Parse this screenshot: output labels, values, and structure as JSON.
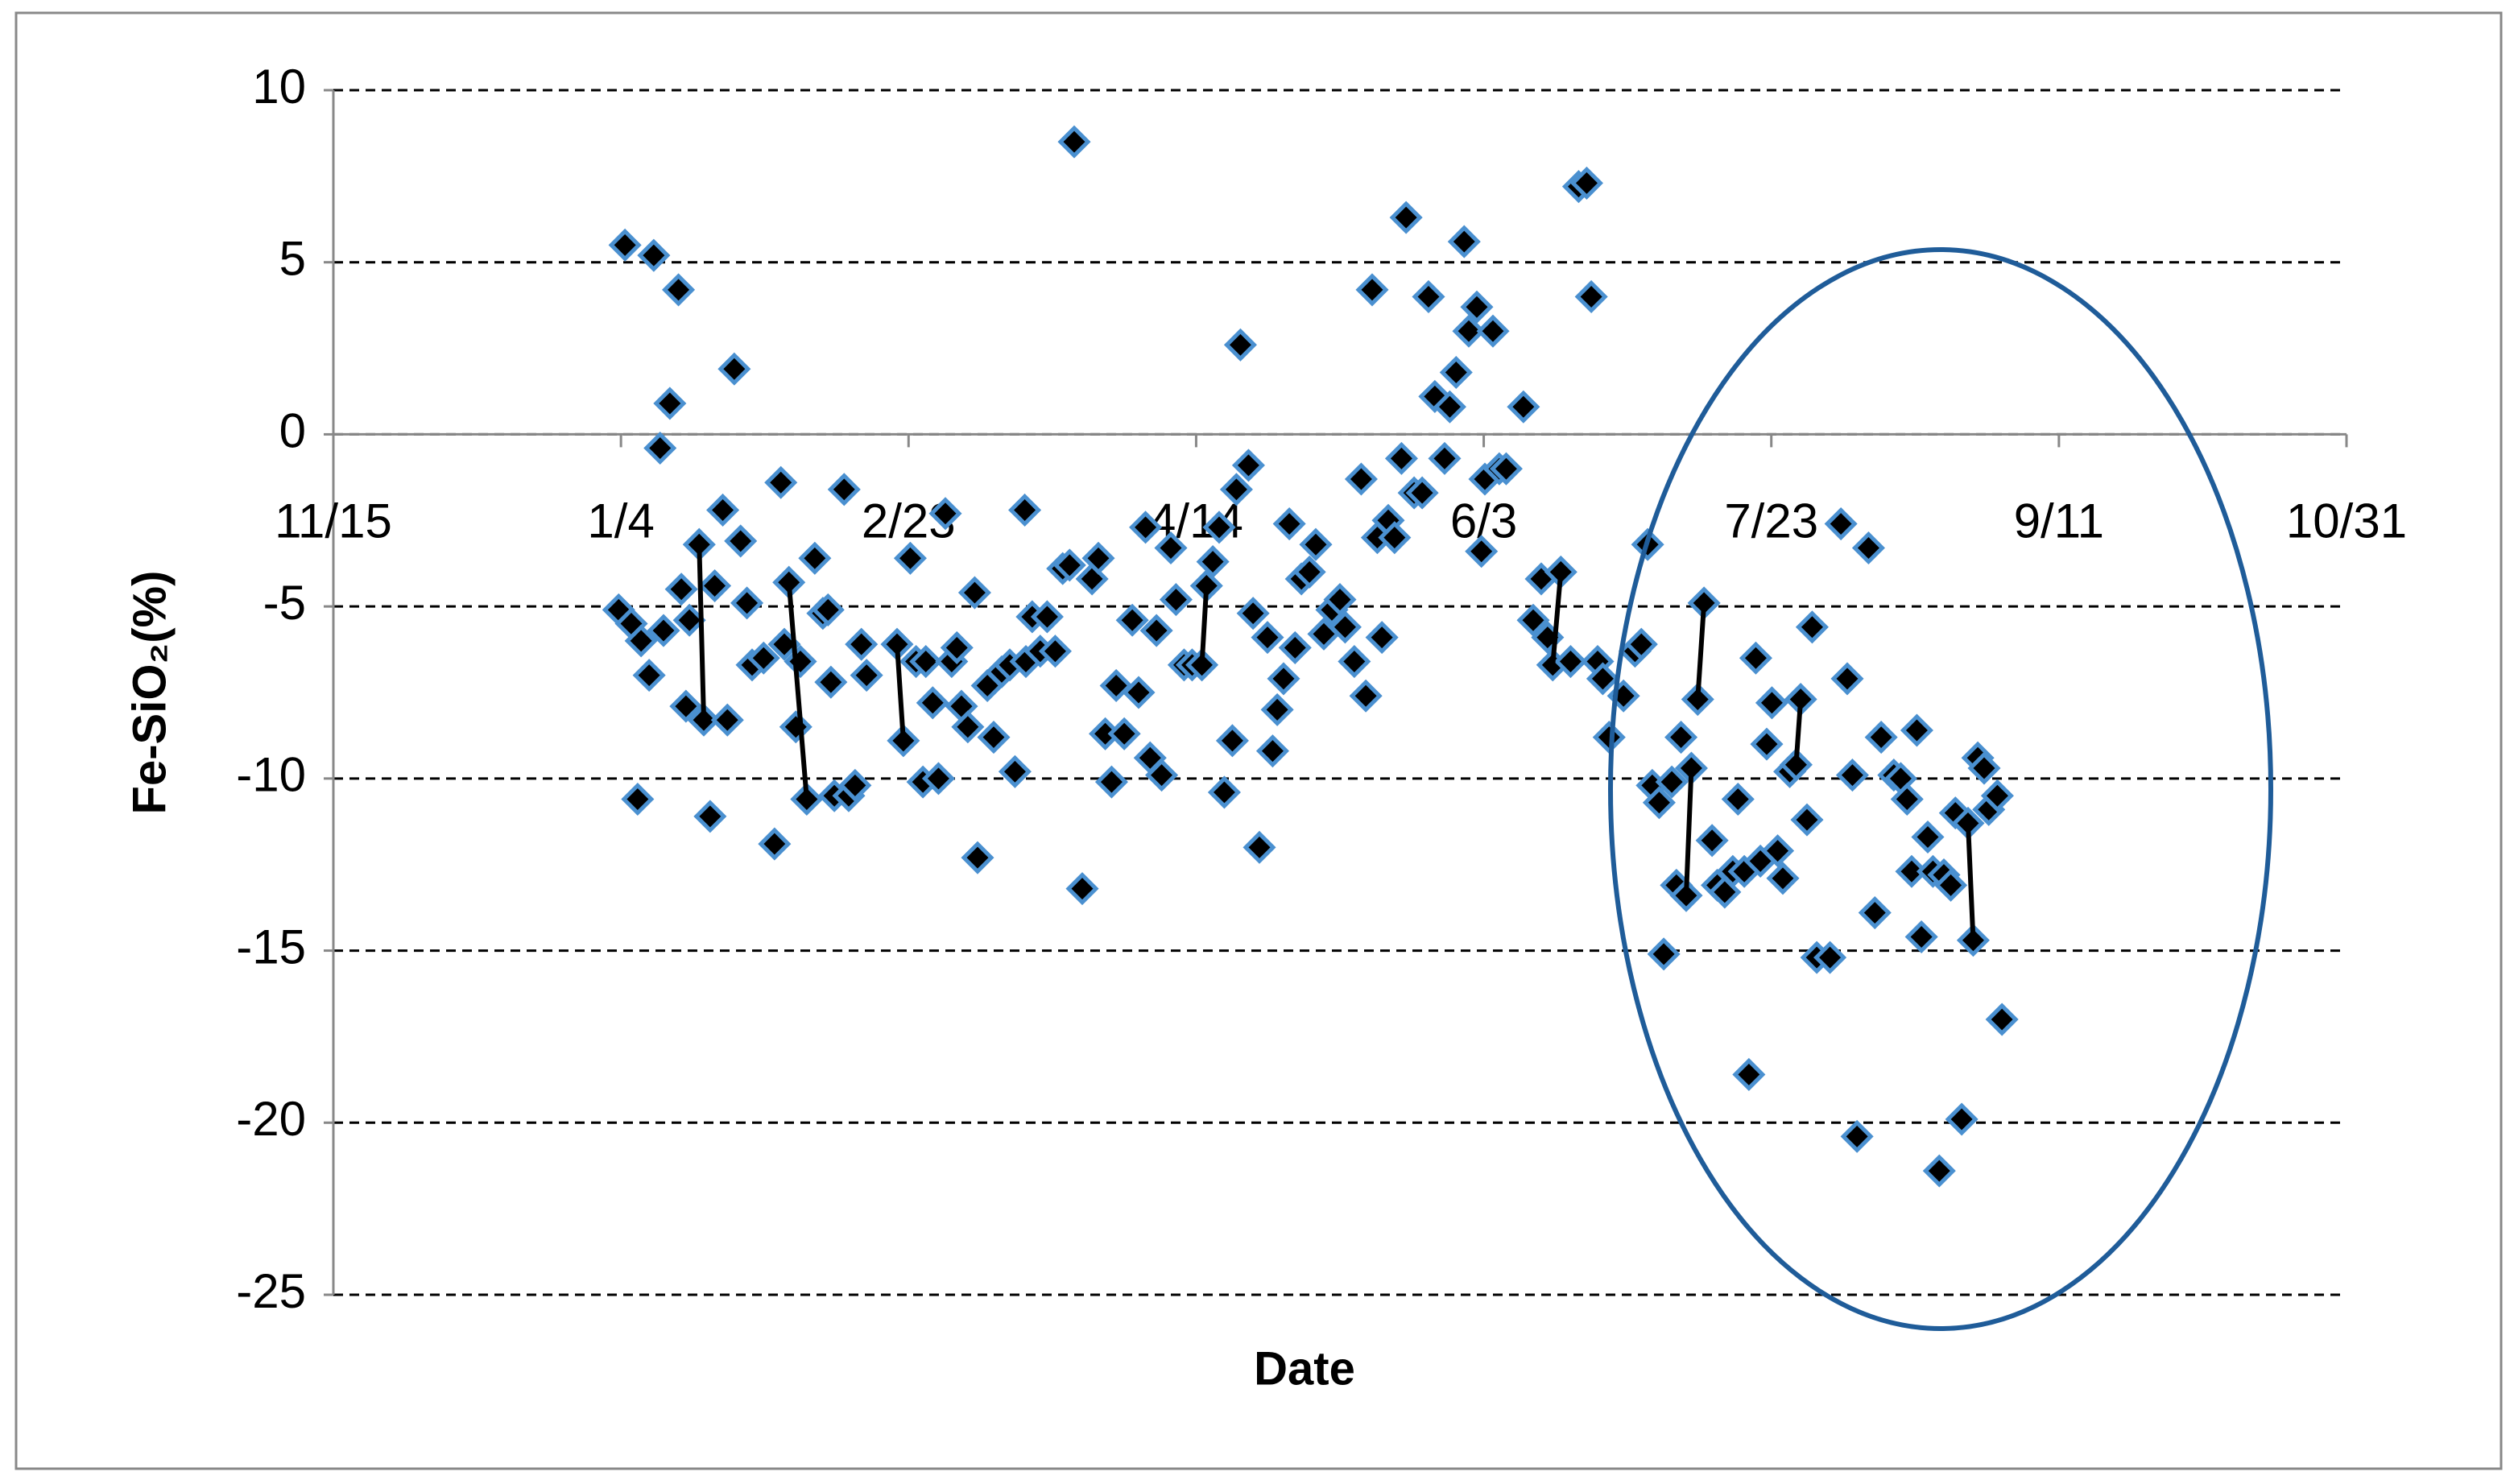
{
  "chart_data": {
    "type": "scatter",
    "xlabel": "Date",
    "ylabel": "Fe-SiO₂(%)",
    "xlim": [
      0,
      350
    ],
    "xticks": [
      {
        "value": 0,
        "label": "11/15"
      },
      {
        "value": 50,
        "label": "1/4"
      },
      {
        "value": 100,
        "label": "2/23"
      },
      {
        "value": 150,
        "label": "4/14"
      },
      {
        "value": 200,
        "label": "6/3"
      },
      {
        "value": 250,
        "label": "7/23"
      },
      {
        "value": 300,
        "label": "9/11"
      },
      {
        "value": 350,
        "label": "10/31"
      }
    ],
    "ylim": [
      -25,
      10
    ],
    "yticks": [
      10,
      5,
      0,
      -5,
      -10,
      -15,
      -20,
      -25
    ],
    "grid": true,
    "series": [
      {
        "color": "#000000",
        "marker": "diamond",
        "edgecolor": "#4a90d0",
        "x": [
          50.7,
          55.7,
          60,
          58.5,
          56.8,
          69.7,
          49.6,
          51.8,
          53.5,
          54.9,
          52.9,
          57.4,
          60.5,
          61.9,
          63.6,
          61.3,
          64.4,
          66.3,
          67.7,
          68.5,
          70.8,
          71.9,
          65.5,
          72.8,
          74.8,
          76.7,
          77.8,
          79.2,
          78.4,
          80.4,
          81.2,
          82.3,
          83.7,
          85.1,
          86,
          86.5,
          87.1,
          88.8,
          89.6,
          90.7,
          91.8,
          92.7,
          98,
          99.1,
          100.3,
          101.3,
          102.5,
          103,
          104.2,
          105.2,
          106.4,
          107.5,
          108.4,
          109.2,
          110.3,
          111.5,
          112,
          113.7,
          114.8,
          116.2,
          117.6,
          118.5,
          120.2,
          120.4,
          121.5,
          122.9,
          124.1,
          125.5,
          126.8,
          128,
          128.8,
          130.2,
          131.9,
          133,
          134.2,
          135.3,
          136.1,
          137.5,
          138.9,
          140,
          141.2,
          142,
          143.1,
          144,
          145.6,
          146.5,
          147.9,
          149.3,
          151,
          151.8,
          152.9,
          154,
          154.9,
          156.3,
          157.7,
          159.1,
          157,
          159.9,
          161,
          162.4,
          163.3,
          164.1,
          165.2,
          166.2,
          167.2,
          168.3,
          169.7,
          170.8,
          172.2,
          173.6,
          175,
          175.9,
          177.5,
          178.7,
          179.5,
          180.6,
          181.5,
          182.3,
          183.4,
          184.5,
          185.7,
          186.5,
          187.9,
          189.3,
          190.4,
          191.5,
          193.2,
          194.1,
          195.2,
          196.6,
          197.4,
          198.8,
          199.6,
          200.2,
          201.6,
          202.7,
          203.9,
          206.9,
          208.6,
          210,
          211.1,
          212,
          213.4,
          215.1,
          216.5,
          217.9,
          218.7,
          219.8,
          220.7,
          221.8,
          224.3,
          226.3,
          227.4,
          228.5,
          229.3,
          230.5,
          231.3,
          232.7,
          233.5,
          234.3,
          235.2,
          236.1,
          237.2,
          238.3,
          239.7,
          240.6,
          241.9,
          243.3,
          244.2,
          245.3,
          246.1,
          247.3,
          248.1,
          249.2,
          250.1,
          251.1,
          252,
          253.2,
          254.3,
          255.1,
          256.2,
          257.1,
          257.9,
          260.2,
          262.1,
          263.2,
          264.1,
          264.9,
          266.9,
          268,
          269.1,
          271.3,
          272.5,
          273.6,
          274.4,
          275.3,
          276.1,
          277.2,
          278.1,
          279.2,
          280,
          281.2,
          282,
          283.1,
          284.2,
          285.1,
          285.9,
          287,
          287.8,
          289.3,
          290.1
        ],
        "values": [
          5.5,
          5.2,
          4.2,
          0.9,
          -0.4,
          1.9,
          -5.1,
          -5.5,
          -6.0,
          -7.0,
          -10.6,
          -5.7,
          -4.5,
          -5.4,
          -3.2,
          -7.9,
          -8.3,
          -4.4,
          -2.2,
          -8.3,
          -3.1,
          -4.9,
          -11.1,
          -6.7,
          -6.5,
          -11.9,
          -1.4,
          -4.3,
          -6.1,
          -8.5,
          -6.6,
          -10.6,
          -3.6,
          -5.2,
          -5.1,
          -7.2,
          -10.5,
          -1.6,
          -10.5,
          -10.2,
          -6.1,
          -7.0,
          -6.1,
          -8.9,
          -3.6,
          -6.6,
          -10.1,
          -6.6,
          -7.8,
          -10.0,
          -2.3,
          -6.6,
          -6.2,
          -7.9,
          -8.5,
          -4.6,
          -12.3,
          -7.3,
          -8.8,
          -6.9,
          -6.7,
          -9.8,
          -2.2,
          -6.6,
          -5.3,
          -6.3,
          -5.3,
          -6.3,
          -3.9,
          -3.8,
          8.5,
          -13.2,
          -4.2,
          -3.6,
          -8.7,
          -10.1,
          -7.3,
          -8.7,
          -5.4,
          -7.5,
          -2.7,
          -9.4,
          -5.7,
          -9.9,
          -3.3,
          -4.8,
          -6.7,
          -6.7,
          -6.7,
          -4.4,
          -3.7,
          -2.7,
          -10.4,
          -8.9,
          2.6,
          -0.9,
          -1.6,
          -5.2,
          -12.0,
          -5.9,
          -9.2,
          -8.0,
          -7.1,
          -2.6,
          -6.2,
          -4.2,
          -4.0,
          -3.2,
          -5.8,
          -5.1,
          -4.8,
          -5.6,
          -6.6,
          -1.3,
          -7.6,
          4.2,
          -3.0,
          -5.9,
          -2.5,
          -3.0,
          -0.7,
          6.3,
          -1.7,
          -1.7,
          4.0,
          1.1,
          -0.7,
          0.8,
          1.8,
          5.6,
          3.0,
          3.7,
          -3.4,
          -1.3,
          3.0,
          -1.0,
          -1.0,
          0.8,
          -5.4,
          -4.2,
          -5.9,
          -6.7,
          -4.0,
          -6.6,
          7.2,
          7.3,
          4.0,
          -6.6,
          -7.1,
          -8.8,
          -7.6,
          -6.3,
          -6.1,
          -3.2,
          -10.2,
          -10.7,
          -15.1,
          -10.1,
          -13.1,
          -8.8,
          -13.4,
          -9.7,
          -7.7,
          -4.9,
          -11.8,
          -13.1,
          -13.3,
          -12.7,
          -10.6,
          -12.7,
          -18.6,
          -6.5,
          -12.4,
          -9.0,
          -7.8,
          -12.1,
          -12.9,
          -9.8,
          -9.6,
          -7.7,
          -11.2,
          -5.6,
          -15.2,
          -15.2,
          -2.6,
          -7.1,
          -9.9,
          -20.4,
          -3.3,
          -13.9,
          -8.8,
          -9.9,
          -10.0,
          -10.6,
          -12.7,
          -8.6,
          -14.6,
          -11.7,
          -12.7,
          -21.4,
          -12.8,
          -13.1,
          -11.0,
          -19.9,
          -11.3,
          -14.7,
          -9.4,
          -9.7,
          -10.9,
          -10.5,
          -17.0
        ]
      },
      {
        "color": "#000000",
        "marker": "none",
        "line": true,
        "x": [
          63.6,
          64.4,
          null,
          79.2,
          82.3,
          null,
          98,
          99.1,
          null,
          151.8,
          151,
          null,
          213.4,
          212,
          null,
          235.2,
          236.1,
          null,
          237.2,
          238.3,
          null,
          255.1,
          254.3,
          null,
          284.2,
          285.1
        ],
        "values": [
          -3.2,
          -8.3,
          null,
          -4.3,
          -10.6,
          null,
          -6.1,
          -8.9,
          null,
          -4.4,
          -6.7,
          null,
          -4.0,
          -6.7,
          null,
          -13.4,
          -9.7,
          null,
          -7.7,
          -4.9,
          null,
          -7.7,
          -9.6,
          null,
          -11.3,
          -14.7
        ]
      }
    ]
  }
}
